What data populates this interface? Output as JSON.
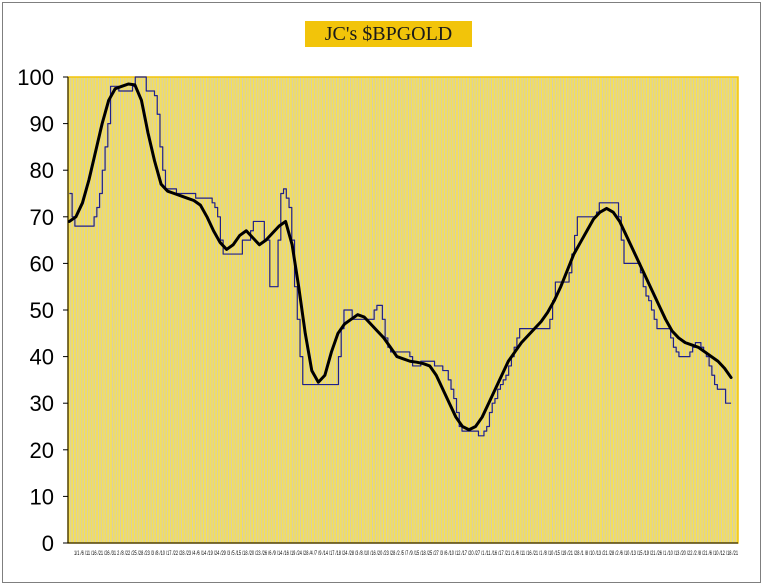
{
  "chart_data": {
    "type": "line",
    "title": "JC's $BPGOLD",
    "xlabel": "",
    "ylabel": "",
    "ylim": [
      0,
      100
    ],
    "yticks": [
      0,
      10,
      20,
      30,
      40,
      50,
      60,
      70,
      80,
      90,
      100
    ],
    "xtick_labels": "1/1 /6 /11 /16 /21 /26 /31 2 /8 /22 /25 /28 /23 /3 /8 /10 /17 /22 /28 /23 /4 /6 /14 /19 /24 /29 /3 /5 /15 /18 /20 /23 /26 /6 /9 /14 /16 /19 /24 /28 /4 /7 /9 /14 /17 /18 /24 /28 /3 /8 /10 /16 /20 /23 /28 /2 /5 /7 /9 /15 /18 /25 /27 /3 /6 /10 /12 /17 /20 /27 /1 /11 /16 /17 /21 /1 /6 /11 /16 /21 /1 /8 /10 /15 /19 /21 /28 /1 /8 /10 /13 /21 /28 /2 /6 /10 /13 /15 /19 /21 /26 /1 /10 /13 /20 /22 /2 /8 /21 /6 /10 /12 /18 /21",
    "grid": true,
    "background": "#f5df5c",
    "plot_border": "#f2c40a",
    "grid_color": "#c9c9c9",
    "series": [
      {
        "style": "thin",
        "color": "#1f1f8a",
        "values": [
          75,
          70,
          68,
          68,
          68,
          68,
          68,
          68,
          68,
          70,
          72,
          75,
          80,
          85,
          90,
          98,
          98,
          98,
          97,
          97,
          97,
          97,
          97,
          98,
          100,
          100,
          100,
          100,
          97,
          97,
          97,
          96,
          92,
          85,
          80,
          76,
          76,
          76,
          76,
          75,
          75,
          75,
          75,
          75,
          75,
          75,
          74,
          74,
          74,
          74,
          74,
          74,
          73,
          72,
          70,
          65,
          62,
          62,
          62,
          62,
          62,
          62,
          62,
          65,
          65,
          65,
          67,
          69,
          69,
          69,
          69,
          65,
          65,
          55,
          55,
          55,
          65,
          75,
          76,
          74,
          72,
          65,
          55,
          48,
          40,
          34,
          34,
          34,
          34,
          34,
          34,
          34,
          34,
          34,
          34,
          34,
          34,
          34,
          40,
          46,
          50,
          50,
          50,
          48,
          48,
          48,
          48,
          48,
          48,
          48,
          48,
          50,
          51,
          51,
          48,
          44,
          42,
          41,
          41,
          41,
          41,
          41,
          41,
          41,
          40,
          38,
          38,
          38,
          39,
          39,
          39,
          39,
          39,
          38,
          38,
          38,
          37,
          37,
          35,
          33,
          31,
          28,
          25,
          24,
          24,
          24,
          24,
          24,
          24,
          23,
          23,
          24,
          25,
          28,
          30,
          31,
          33,
          34,
          35,
          36,
          38,
          40,
          42,
          44,
          46,
          46,
          46,
          46,
          46,
          46,
          46,
          46,
          46,
          46,
          46,
          48,
          52,
          56,
          56,
          56,
          56,
          56,
          58,
          62,
          66,
          70,
          70,
          70,
          70,
          70,
          70,
          70,
          71,
          73,
          73,
          73,
          73,
          73,
          73,
          73,
          70,
          65,
          60,
          60,
          60,
          60,
          60,
          60,
          58,
          55,
          53,
          52,
          50,
          48,
          46,
          46,
          46,
          46,
          46,
          44,
          42,
          41,
          40,
          40,
          40,
          40,
          41,
          42,
          43,
          43,
          42,
          41,
          40,
          38,
          36,
          34,
          33,
          33,
          33,
          30,
          30,
          30
        ],
        "x_range": [
          1,
          240
        ]
      },
      {
        "style": "thick",
        "color": "#000000",
        "values": [
          69,
          70,
          73,
          78,
          84,
          90,
          95,
          97.5,
          98,
          98.5,
          98.3,
          95,
          88,
          82,
          77,
          75.5,
          75,
          74.5,
          74,
          73.5,
          72.5,
          70,
          67,
          64.5,
          63,
          64,
          66,
          67,
          65.5,
          64,
          65,
          66.5,
          68,
          69,
          64,
          55,
          45,
          37,
          34.5,
          36,
          41,
          45,
          47,
          48,
          49,
          48.5,
          47,
          45.5,
          44,
          42,
          40,
          39.5,
          39,
          38.8,
          38.5,
          38,
          36,
          33,
          30,
          27,
          25,
          24.3,
          25,
          27,
          30,
          33,
          36,
          39,
          41,
          43,
          44.5,
          46,
          47.5,
          49.5,
          52,
          55,
          58.5,
          62,
          64.5,
          67,
          69.5,
          71,
          71.8,
          71,
          69,
          66,
          63,
          60,
          57,
          54,
          51,
          48,
          45.5,
          44,
          43,
          42.5,
          42,
          41,
          40,
          39,
          37.5,
          35.5
        ],
        "x_range": [
          1,
          240
        ]
      }
    ]
  }
}
